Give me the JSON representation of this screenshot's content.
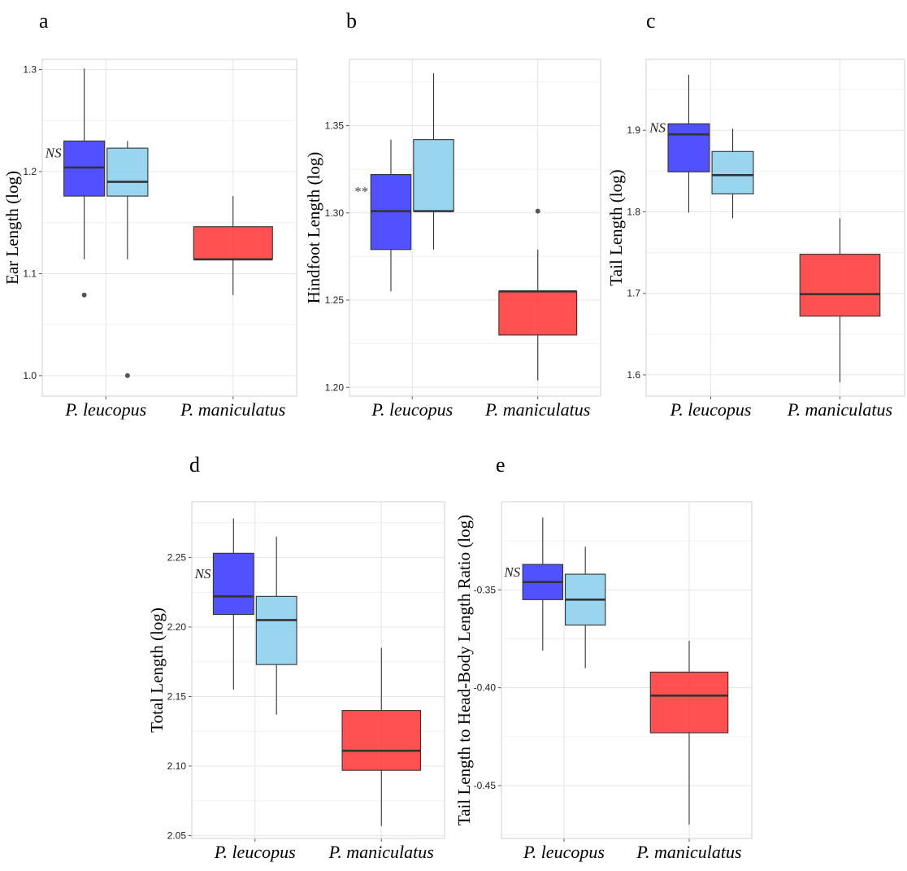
{
  "colors": {
    "leucopus_dark": "#3333ff",
    "leucopus_light": "#87ceeb",
    "maniculatus": "#ff3333",
    "grid": "#e5e5e5",
    "border": "#d0d0d0"
  },
  "chart_data": [
    {
      "type": "box",
      "panel": "a",
      "ylabel": "Ear Length (log)",
      "ylim": [
        0.98,
        1.31
      ],
      "yticks": [
        "1.0",
        "1.1",
        "1.2",
        "1.3"
      ],
      "categories": [
        "P. leucopus",
        "P. maniculatus"
      ],
      "annotation": "NS",
      "boxes": [
        {
          "category": 0,
          "offset": -1,
          "color": "leucopus_dark",
          "min": 1.114,
          "q1": 1.176,
          "median": 1.204,
          "q3": 1.23,
          "max": 1.301,
          "outliers": [
            1.079
          ]
        },
        {
          "category": 0,
          "offset": 1,
          "color": "leucopus_light",
          "min": 1.114,
          "q1": 1.176,
          "median": 1.19,
          "q3": 1.223,
          "max": 1.23,
          "outliers": [
            1.0
          ]
        },
        {
          "category": 1,
          "offset": 0,
          "color": "maniculatus",
          "min": 1.079,
          "q1": 1.114,
          "median": 1.114,
          "q3": 1.146,
          "max": 1.176,
          "outliers": []
        }
      ]
    },
    {
      "type": "box",
      "panel": "b",
      "ylabel": "Hindfoot Length (log)",
      "ylim": [
        1.195,
        1.388
      ],
      "yticks": [
        "1.20",
        "1.25",
        "1.30",
        "1.35"
      ],
      "categories": [
        "P. leucopus",
        "P. maniculatus"
      ],
      "annotation": "**",
      "boxes": [
        {
          "category": 0,
          "offset": -1,
          "color": "leucopus_dark",
          "min": 1.255,
          "q1": 1.279,
          "median": 1.301,
          "q3": 1.322,
          "max": 1.342,
          "outliers": []
        },
        {
          "category": 0,
          "offset": 1,
          "color": "leucopus_light",
          "min": 1.279,
          "q1": 1.301,
          "median": 1.301,
          "q3": 1.342,
          "max": 1.38,
          "outliers": []
        },
        {
          "category": 1,
          "offset": 0,
          "color": "maniculatus",
          "min": 1.204,
          "q1": 1.23,
          "median": 1.255,
          "q3": 1.255,
          "max": 1.279,
          "outliers": [
            1.301
          ]
        }
      ]
    },
    {
      "type": "box",
      "panel": "c",
      "ylabel": "Tail Length (log)",
      "ylim": [
        1.574,
        1.987
      ],
      "yticks": [
        "1.6",
        "1.7",
        "1.8",
        "1.9"
      ],
      "categories": [
        "P. leucopus",
        "P. maniculatus"
      ],
      "annotation": "NS",
      "boxes": [
        {
          "category": 0,
          "offset": -1,
          "color": "leucopus_dark",
          "min": 1.799,
          "q1": 1.849,
          "median": 1.895,
          "q3": 1.908,
          "max": 1.968,
          "outliers": []
        },
        {
          "category": 0,
          "offset": 1,
          "color": "leucopus_light",
          "min": 1.792,
          "q1": 1.822,
          "median": 1.845,
          "q3": 1.874,
          "max": 1.902,
          "outliers": []
        },
        {
          "category": 1,
          "offset": 0,
          "color": "maniculatus",
          "min": 1.591,
          "q1": 1.672,
          "median": 1.699,
          "q3": 1.748,
          "max": 1.792,
          "outliers": []
        }
      ]
    },
    {
      "type": "box",
      "panel": "d",
      "ylabel": "Total Length (log)",
      "ylim": [
        2.048,
        2.29
      ],
      "yticks": [
        "2.05",
        "2.10",
        "2.15",
        "2.20",
        "2.25"
      ],
      "categories": [
        "P. leucopus",
        "P. maniculatus"
      ],
      "annotation": "NS",
      "boxes": [
        {
          "category": 0,
          "offset": -1,
          "color": "leucopus_dark",
          "min": 2.155,
          "q1": 2.209,
          "median": 2.222,
          "q3": 2.253,
          "max": 2.278,
          "outliers": []
        },
        {
          "category": 0,
          "offset": 1,
          "color": "leucopus_light",
          "min": 2.137,
          "q1": 2.173,
          "median": 2.205,
          "q3": 2.222,
          "max": 2.265,
          "outliers": []
        },
        {
          "category": 1,
          "offset": 0,
          "color": "maniculatus",
          "min": 2.057,
          "q1": 2.097,
          "median": 2.111,
          "q3": 2.14,
          "max": 2.185,
          "outliers": []
        }
      ]
    },
    {
      "type": "box",
      "panel": "e",
      "ylabel": "Tail Length to Head-Body Length Ratio (log)",
      "ylim": [
        -0.477,
        -0.305
      ],
      "yticks": [
        "-0.45",
        "-0.40",
        "-0.35"
      ],
      "categories": [
        "P. leucopus",
        "P. maniculatus"
      ],
      "annotation": "NS",
      "boxes": [
        {
          "category": 0,
          "offset": -1,
          "color": "leucopus_dark",
          "min": -0.381,
          "q1": -0.355,
          "median": -0.346,
          "q3": -0.337,
          "max": -0.313,
          "outliers": []
        },
        {
          "category": 0,
          "offset": 1,
          "color": "leucopus_light",
          "min": -0.39,
          "q1": -0.368,
          "median": -0.355,
          "q3": -0.342,
          "max": -0.328,
          "outliers": []
        },
        {
          "category": 1,
          "offset": 0,
          "color": "maniculatus",
          "min": -0.47,
          "q1": -0.423,
          "median": -0.404,
          "q3": -0.392,
          "max": -0.376,
          "outliers": []
        }
      ]
    }
  ]
}
